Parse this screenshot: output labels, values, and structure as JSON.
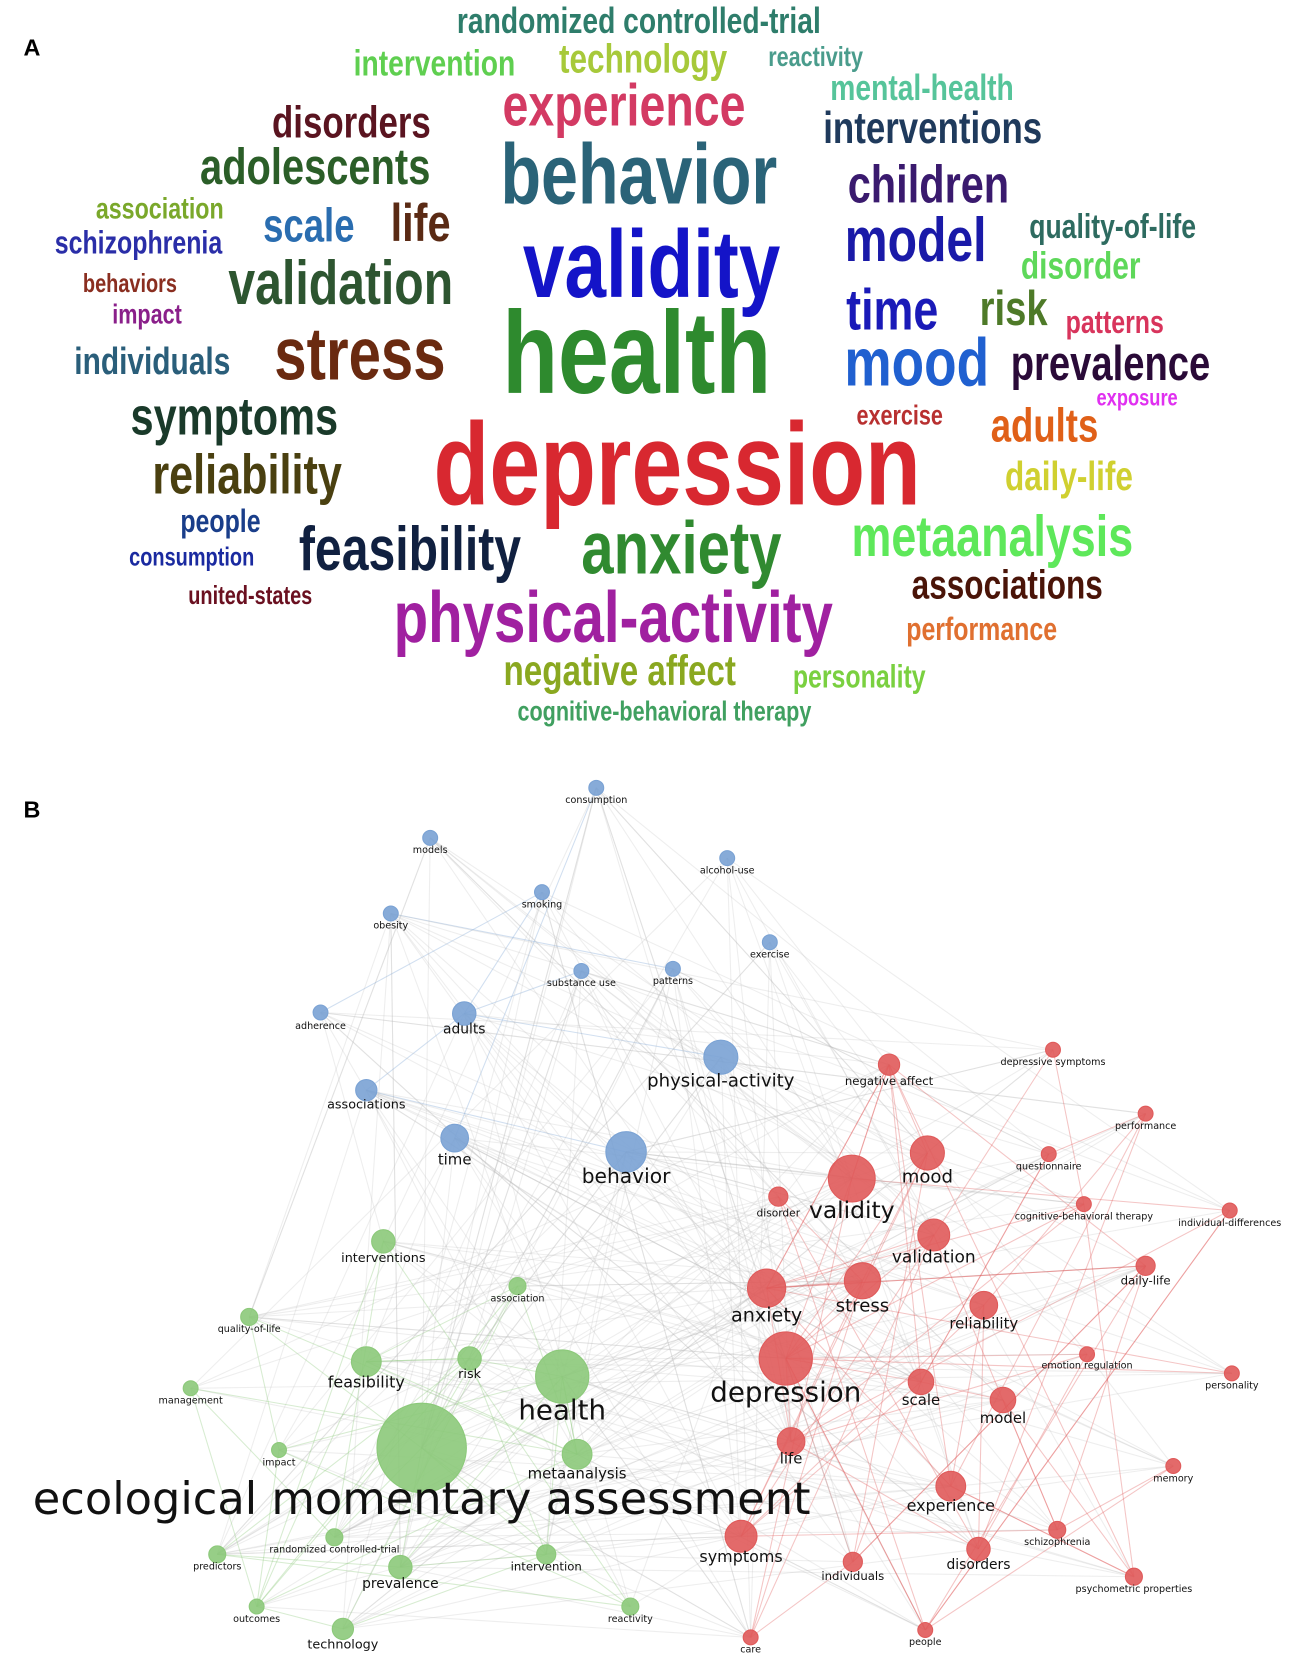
{
  "panel_labels": [
    "A",
    "B"
  ],
  "word_cloud": {
    "words": [
      {
        "text": "randomized controlled-trial",
        "color": "#2e7d6b"
      },
      {
        "text": "intervention",
        "color": "#5fcf50"
      },
      {
        "text": "technology",
        "color": "#a7c93a"
      },
      {
        "text": "reactivity",
        "color": "#4a9c8c"
      },
      {
        "text": "mental-health",
        "color": "#56c49a"
      },
      {
        "text": "experience",
        "color": "#d33a63"
      },
      {
        "text": "disorders",
        "color": "#5a1420"
      },
      {
        "text": "interventions",
        "color": "#1f3a5c"
      },
      {
        "text": "adolescents",
        "color": "#2b5e28"
      },
      {
        "text": "behavior",
        "color": "#2a6378"
      },
      {
        "text": "children",
        "color": "#3a1a6e"
      },
      {
        "text": "association",
        "color": "#7aa82b"
      },
      {
        "text": "schizophrenia",
        "color": "#2a2ea8"
      },
      {
        "text": "scale",
        "color": "#2a6db0"
      },
      {
        "text": "life",
        "color": "#5a2a14"
      },
      {
        "text": "validity",
        "color": "#1414c8"
      },
      {
        "text": "model",
        "color": "#1a1aa8"
      },
      {
        "text": "quality-of-life",
        "color": "#2e6b60"
      },
      {
        "text": "disorder",
        "color": "#5ed85a"
      },
      {
        "text": "validation",
        "color": "#2d5530"
      },
      {
        "text": "behaviors",
        "color": "#8a2e20"
      },
      {
        "text": "impact",
        "color": "#8a1f8a"
      },
      {
        "text": "time",
        "color": "#1a1ab8"
      },
      {
        "text": "risk",
        "color": "#4e7a28"
      },
      {
        "text": "patterns",
        "color": "#d8345c"
      },
      {
        "text": "individuals",
        "color": "#2a5e7a"
      },
      {
        "text": "stress",
        "color": "#6a2a10"
      },
      {
        "text": "health",
        "color": "#2e8a2e"
      },
      {
        "text": "mood",
        "color": "#2060d0"
      },
      {
        "text": "prevalence",
        "color": "#2a0a38"
      },
      {
        "text": "exposure",
        "color": "#e030f0"
      },
      {
        "text": "symptoms",
        "color": "#1a3a2a"
      },
      {
        "text": "exercise",
        "color": "#b83030"
      },
      {
        "text": "adults",
        "color": "#e06018"
      },
      {
        "text": "reliability",
        "color": "#4a4010"
      },
      {
        "text": "depression",
        "color": "#d82830"
      },
      {
        "text": "daily-life",
        "color": "#d0d030"
      },
      {
        "text": "people",
        "color": "#1a3e8a"
      },
      {
        "text": "metaanalysis",
        "color": "#5ee85a"
      },
      {
        "text": "feasibility",
        "color": "#102040"
      },
      {
        "text": "anxiety",
        "color": "#308a30"
      },
      {
        "text": "consumption",
        "color": "#1a2aa0"
      },
      {
        "text": "associations",
        "color": "#4a1408"
      },
      {
        "text": "united-states",
        "color": "#6a1020"
      },
      {
        "text": "physical-activity",
        "color": "#a020a0"
      },
      {
        "text": "performance",
        "color": "#e07030"
      },
      {
        "text": "negative affect",
        "color": "#8aa820"
      },
      {
        "text": "personality",
        "color": "#7ad040"
      },
      {
        "text": "cognitive-behavioral therapy",
        "color": "#40a060"
      }
    ]
  },
  "network": {
    "nodes": [
      {
        "label": "consumption",
        "color": "#7aa2d4"
      },
      {
        "label": "models",
        "color": "#7aa2d4"
      },
      {
        "label": "alcohol-use",
        "color": "#7aa2d4"
      },
      {
        "label": "smoking",
        "color": "#7aa2d4"
      },
      {
        "label": "obesity",
        "color": "#7aa2d4"
      },
      {
        "label": "exercise",
        "color": "#7aa2d4"
      },
      {
        "label": "substance use",
        "color": "#7aa2d4"
      },
      {
        "label": "patterns",
        "color": "#7aa2d4"
      },
      {
        "label": "adherence",
        "color": "#7aa2d4"
      },
      {
        "label": "adults",
        "color": "#7aa2d4"
      },
      {
        "label": "physical-activity",
        "color": "#7aa2d4"
      },
      {
        "label": "associations",
        "color": "#7aa2d4"
      },
      {
        "label": "time",
        "color": "#7aa2d4"
      },
      {
        "label": "behavior",
        "color": "#7aa2d4"
      },
      {
        "label": "negative affect",
        "color": "#e05a5a"
      },
      {
        "label": "depressive symptoms",
        "color": "#e05a5a"
      },
      {
        "label": "performance",
        "color": "#e05a5a"
      },
      {
        "label": "questionnaire",
        "color": "#e05a5a"
      },
      {
        "label": "mood",
        "color": "#e05a5a"
      },
      {
        "label": "validity",
        "color": "#e05a5a"
      },
      {
        "label": "disorder",
        "color": "#e05a5a"
      },
      {
        "label": "cognitive-behavioral therapy",
        "color": "#e05a5a"
      },
      {
        "label": "individual-differences",
        "color": "#e05a5a"
      },
      {
        "label": "validation",
        "color": "#e05a5a"
      },
      {
        "label": "daily-life",
        "color": "#e05a5a"
      },
      {
        "label": "anxiety",
        "color": "#e05a5a"
      },
      {
        "label": "stress",
        "color": "#e05a5a"
      },
      {
        "label": "reliability",
        "color": "#e05a5a"
      },
      {
        "label": "emotion regulation",
        "color": "#e05a5a"
      },
      {
        "label": "depression",
        "color": "#e05a5a"
      },
      {
        "label": "scale",
        "color": "#e05a5a"
      },
      {
        "label": "personality",
        "color": "#e05a5a"
      },
      {
        "label": "model",
        "color": "#e05a5a"
      },
      {
        "label": "life",
        "color": "#e05a5a"
      },
      {
        "label": "memory",
        "color": "#e05a5a"
      },
      {
        "label": "experience",
        "color": "#e05a5a"
      },
      {
        "label": "schizophrenia",
        "color": "#e05a5a"
      },
      {
        "label": "symptoms",
        "color": "#e05a5a"
      },
      {
        "label": "disorders",
        "color": "#e05a5a"
      },
      {
        "label": "individuals",
        "color": "#e05a5a"
      },
      {
        "label": "psychometric properties",
        "color": "#e05a5a"
      },
      {
        "label": "care",
        "color": "#e05a5a"
      },
      {
        "label": "people",
        "color": "#e05a5a"
      },
      {
        "label": "interventions",
        "color": "#8cc97a"
      },
      {
        "label": "association",
        "color": "#8cc97a"
      },
      {
        "label": "quality-of-life",
        "color": "#8cc97a"
      },
      {
        "label": "feasibility",
        "color": "#8cc97a"
      },
      {
        "label": "risk",
        "color": "#8cc97a"
      },
      {
        "label": "health",
        "color": "#8cc97a"
      },
      {
        "label": "management",
        "color": "#8cc97a"
      },
      {
        "label": "ecological momentary assessment",
        "color": "#8cc97a"
      },
      {
        "label": "impact",
        "color": "#8cc97a"
      },
      {
        "label": "metaanalysis",
        "color": "#8cc97a"
      },
      {
        "label": "randomized controlled-trial",
        "color": "#8cc97a"
      },
      {
        "label": "predictors",
        "color": "#8cc97a"
      },
      {
        "label": "prevalence",
        "color": "#8cc97a"
      },
      {
        "label": "intervention",
        "color": "#8cc97a"
      },
      {
        "label": "outcomes",
        "color": "#8cc97a"
      },
      {
        "label": "reactivity",
        "color": "#8cc97a"
      },
      {
        "label": "technology",
        "color": "#8cc97a"
      }
    ]
  }
}
